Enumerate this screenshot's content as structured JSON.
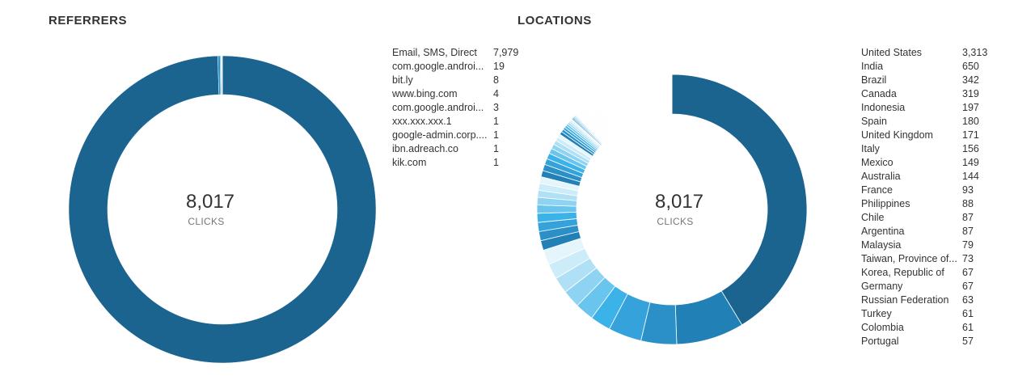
{
  "referrers": {
    "title": "REFERRERS",
    "total": "8,017",
    "total_label": "CLICKS",
    "items": [
      {
        "name": "Email, SMS, Direct",
        "value": "7,979",
        "n": 7979
      },
      {
        "name": "com.google.androi...",
        "value": "19",
        "n": 19
      },
      {
        "name": "bit.ly",
        "value": "8",
        "n": 8
      },
      {
        "name": "www.bing.com",
        "value": "4",
        "n": 4
      },
      {
        "name": "com.google.androi...",
        "value": "3",
        "n": 3
      },
      {
        "name": "xxx.xxx.xxx.1",
        "value": "1",
        "n": 1
      },
      {
        "name": "google-admin.corp....",
        "value": "1",
        "n": 1
      },
      {
        "name": "ibn.adreach.co",
        "value": "1",
        "n": 1
      },
      {
        "name": "kik.com",
        "value": "1",
        "n": 1
      }
    ]
  },
  "locations": {
    "title": "LOCATIONS",
    "total": "8,017",
    "total_label": "CLICKS",
    "items": [
      {
        "name": "United States",
        "value": "3,313",
        "n": 3313
      },
      {
        "name": "India",
        "value": "650",
        "n": 650
      },
      {
        "name": "Brazil",
        "value": "342",
        "n": 342
      },
      {
        "name": "Canada",
        "value": "319",
        "n": 319
      },
      {
        "name": "Indonesia",
        "value": "197",
        "n": 197
      },
      {
        "name": "Spain",
        "value": "180",
        "n": 180
      },
      {
        "name": "United Kingdom",
        "value": "171",
        "n": 171
      },
      {
        "name": "Italy",
        "value": "156",
        "n": 156
      },
      {
        "name": "Mexico",
        "value": "149",
        "n": 149
      },
      {
        "name": "Australia",
        "value": "144",
        "n": 144
      },
      {
        "name": "France",
        "value": "93",
        "n": 93
      },
      {
        "name": "Philippines",
        "value": "88",
        "n": 88
      },
      {
        "name": "Chile",
        "value": "87",
        "n": 87
      },
      {
        "name": "Argentina",
        "value": "87",
        "n": 87
      },
      {
        "name": "Malaysia",
        "value": "79",
        "n": 79
      },
      {
        "name": "Taiwan, Province of...",
        "value": "73",
        "n": 73
      },
      {
        "name": "Korea, Republic of",
        "value": "67",
        "n": 67
      },
      {
        "name": "Germany",
        "value": "67",
        "n": 67
      },
      {
        "name": "Russian Federation",
        "value": "63",
        "n": 63
      },
      {
        "name": "Turkey",
        "value": "61",
        "n": 61
      },
      {
        "name": "Colombia",
        "value": "61",
        "n": 61
      },
      {
        "name": "Portugal",
        "value": "57",
        "n": 57
      }
    ]
  },
  "chart_data": [
    {
      "type": "pie",
      "title": "REFERRERS",
      "total": 8017,
      "categories": [
        "Email, SMS, Direct",
        "com.google.androi...",
        "bit.ly",
        "www.bing.com",
        "com.google.androi...",
        "xxx.xxx.xxx.1",
        "google-admin.corp....",
        "ibn.adreach.co",
        "kik.com"
      ],
      "values": [
        7979,
        19,
        8,
        4,
        3,
        1,
        1,
        1,
        1
      ]
    },
    {
      "type": "pie",
      "title": "LOCATIONS",
      "total": 8017,
      "categories": [
        "United States",
        "India",
        "Brazil",
        "Canada",
        "Indonesia",
        "Spain",
        "United Kingdom",
        "Italy",
        "Mexico",
        "Australia",
        "France",
        "Philippines",
        "Chile",
        "Argentina",
        "Malaysia",
        "Taiwan, Province of...",
        "Korea, Republic of",
        "Germany",
        "Russian Federation",
        "Turkey",
        "Colombia",
        "Portugal"
      ],
      "values": [
        3313,
        650,
        342,
        319,
        197,
        180,
        171,
        156,
        149,
        144,
        93,
        88,
        87,
        87,
        79,
        73,
        67,
        67,
        63,
        61,
        61,
        57
      ]
    }
  ],
  "colors": {
    "primary": "#1b6490",
    "palette": [
      "#1b6490",
      "#2180b5",
      "#2b90c8",
      "#35a2dc",
      "#3bb3e8",
      "#6ac5ee",
      "#8ed3f2",
      "#b0e0f5",
      "#cdecf9",
      "#e5f5fc"
    ]
  }
}
